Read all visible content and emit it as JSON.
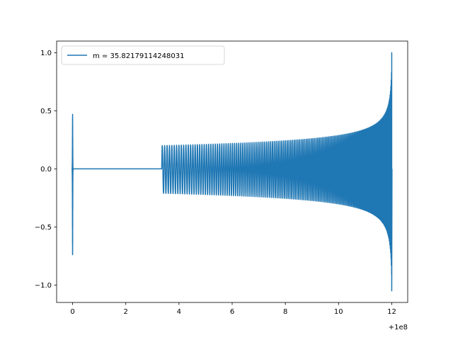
{
  "chart_data": {
    "type": "line",
    "title": "",
    "xlabel": "",
    "ylabel": "",
    "x_offset_label": "+1e8",
    "xlim": [
      -0.6,
      12.6
    ],
    "ylim": [
      -1.15,
      1.1
    ],
    "xticks": [
      0,
      2,
      4,
      6,
      8,
      10,
      12
    ],
    "xtick_labels": [
      "0",
      "2",
      "4",
      "6",
      "8",
      "10",
      "12"
    ],
    "yticks": [
      -1.0,
      -0.5,
      0.0,
      0.5,
      1.0
    ],
    "ytick_labels": [
      "−1.0",
      "−0.5",
      "0.0",
      "0.5",
      "1.0"
    ],
    "grid": false,
    "legend_position": "top-left",
    "series": [
      {
        "name": "m = 35.82179114248031",
        "color": "#1f77b4",
        "description_points": {
          "early_burst": {
            "x": 0.0,
            "max": 0.47,
            "min": -0.75
          },
          "flat_segment": {
            "x_start": 0.05,
            "x_end": 3.35,
            "y": 0.0
          },
          "chirp": {
            "x_start": 3.35,
            "x_end": 12.0,
            "amp_start": 0.2,
            "amp_at_10": 0.3,
            "peak_max": 1.0,
            "peak_min": -1.05
          }
        }
      }
    ]
  }
}
